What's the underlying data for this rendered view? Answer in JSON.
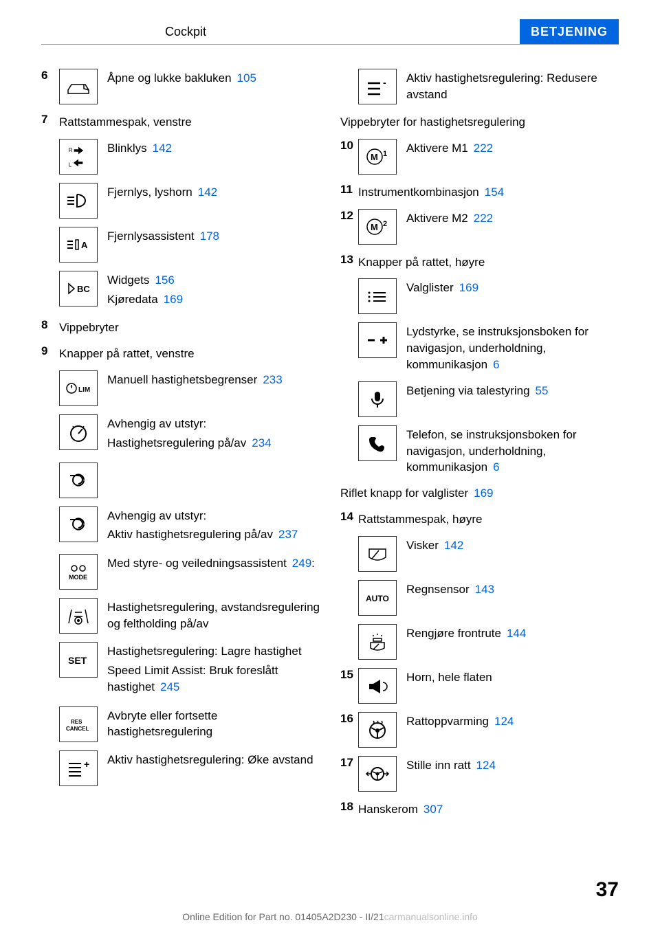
{
  "header": {
    "title": "Cockpit",
    "section": "BETJENING"
  },
  "left_column": {
    "items": [
      {
        "num": "6",
        "icon": "trunk",
        "text": "Åpne og lukke bakluken",
        "ref": "105"
      },
      {
        "num": "7",
        "heading": "Rattstammespak, venstre"
      },
      {
        "icon": "blinker",
        "text": "Blinklys",
        "ref": "142",
        "sub": true
      },
      {
        "icon": "headlight",
        "text": "Fjernlys, lyshorn",
        "ref": "142",
        "sub": true
      },
      {
        "icon": "highbeam-assist",
        "text": "Fjernlysassistent",
        "ref": "178",
        "sub": true
      },
      {
        "icon": "bc",
        "text_lines": [
          {
            "text": "Widgets",
            "ref": "156"
          },
          {
            "text": "Kjøredata",
            "ref": "169"
          }
        ],
        "sub": true
      },
      {
        "num": "8",
        "heading": "Vippebryter"
      },
      {
        "num": "9",
        "heading": "Knapper på rattet, venstre"
      },
      {
        "icon": "lim",
        "text": "Manuell hastighetsbegrenser",
        "ref": "233",
        "sub": true
      },
      {
        "icon": "speedometer",
        "text_lines": [
          {
            "text": "Avhengig av utstyr:"
          },
          {
            "text": "Hastighetsregulering på/av",
            "ref": "234"
          }
        ],
        "sub": true
      },
      {
        "icon": "cruise-alt",
        "text": "",
        "sub": true
      },
      {
        "icon": "cruise-alt",
        "text_lines": [
          {
            "text": "Avhengig av utstyr:"
          },
          {
            "text": "Aktiv hastighetsregulering på/av",
            "ref": "237"
          }
        ],
        "sub": true
      },
      {
        "icon": "mode",
        "text_lines": [
          {
            "text": "Med styre- og veiledningsassistent",
            "ref": "249",
            "suffix": ":"
          }
        ],
        "sub": true
      },
      {
        "icon": "lane-assist",
        "text": "Hastighetsregulering, avstandsregulering og feltholding på/av",
        "sub": true
      },
      {
        "icon": "set",
        "text_lines": [
          {
            "text": "Hastighetsregulering: Lagre hastighet"
          },
          {
            "text": "Speed Limit Assist: Bruk foreslått hastighet",
            "ref": "245"
          }
        ],
        "sub": true
      },
      {
        "icon": "res-cancel",
        "text": "Avbryte eller fortsette hastighetsregulering",
        "sub": true
      },
      {
        "icon": "dist-plus",
        "text": "Aktiv hastighetsregulering: Øke avstand",
        "sub": true
      }
    ]
  },
  "right_column": {
    "items": [
      {
        "icon": "dist-minus",
        "text": "Aktiv hastighetsregulering: Redusere avstand",
        "sub": true
      },
      {
        "heading": "Vippebryter for hastighetsregulering",
        "sub": true,
        "noindent": true
      },
      {
        "num": "10",
        "icon": "m1",
        "text": "Aktivere M1",
        "ref": "222"
      },
      {
        "num": "11",
        "heading": "Instrumentkombinasjon",
        "ref": "154"
      },
      {
        "num": "12",
        "icon": "m2",
        "text": "Aktivere M2",
        "ref": "222"
      },
      {
        "num": "13",
        "heading": "Knapper på rattet, høyre"
      },
      {
        "icon": "list",
        "text": "Valglister",
        "ref": "169",
        "sub": true
      },
      {
        "icon": "volume",
        "text": "Lydstyrke, se instruksjonsboken for navigasjon, underholdning, kommunikasjon",
        "ref": "6",
        "sub": true
      },
      {
        "icon": "mic",
        "text": "Betjening via talestyring",
        "ref": "55",
        "sub": true
      },
      {
        "icon": "phone",
        "text": "Telefon, se instruksjonsboken for navigasjon, underholdning, kommunikasjon",
        "ref": "6",
        "sub": true
      },
      {
        "heading": "Riflet knapp for valglister",
        "ref": "169",
        "sub": true,
        "noindent": true
      },
      {
        "num": "14",
        "heading": "Rattstammespak, høyre"
      },
      {
        "icon": "wiper",
        "text": "Visker",
        "ref": "142",
        "sub": true
      },
      {
        "icon": "auto",
        "text": "Regnsensor",
        "ref": "143",
        "sub": true
      },
      {
        "icon": "washer",
        "text": "Rengjøre frontrute",
        "ref": "144",
        "sub": true
      },
      {
        "num": "15",
        "icon": "horn",
        "text": "Horn, hele flaten"
      },
      {
        "num": "16",
        "icon": "wheel-heat",
        "text": "Rattoppvarming",
        "ref": "124"
      },
      {
        "num": "17",
        "icon": "wheel-adjust",
        "text": "Stille inn ratt",
        "ref": "124"
      },
      {
        "num": "18",
        "heading": "Hanskerom",
        "ref": "307"
      }
    ]
  },
  "page_number": "37",
  "footer": {
    "text": "Online Edition for Part no. 01405A2D230 - II/21",
    "watermark": "carmanualsonline.info"
  },
  "icons": {
    "trunk": "⬚",
    "blinker": "⇄",
    "headlight": "≡D",
    "highbeam-assist": "≡A",
    "bc": "▷ BC",
    "lim": "⊙ LIM",
    "speedometer": "⊙",
    "cruise-alt": "⟳",
    "mode": "MODE",
    "lane-assist": "⊜",
    "set": "SET",
    "res-cancel": "RES",
    "dist-plus": "≡+",
    "dist-minus": "≡-",
    "m1": "M1",
    "m2": "M2",
    "list": "≡",
    "volume": "−+",
    "mic": "🎤",
    "phone": "📞",
    "wiper": "⬚",
    "auto": "AUTO",
    "washer": "⬚",
    "horn": "📢",
    "wheel-heat": "⊕",
    "wheel-adjust": "⊕"
  }
}
